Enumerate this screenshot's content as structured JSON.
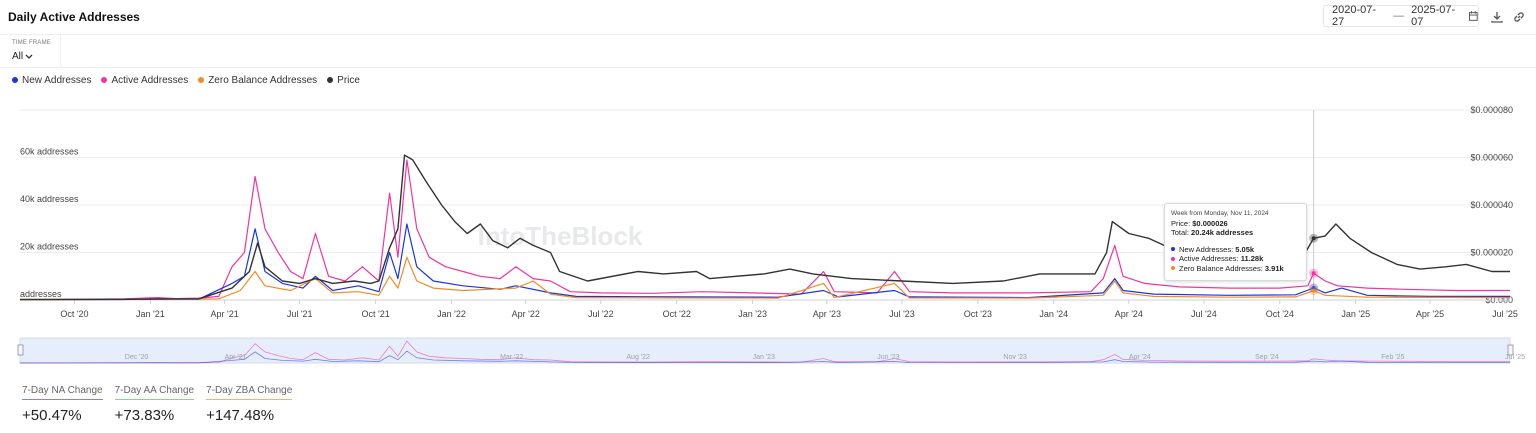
{
  "header": {
    "title": "Daily Active Addresses",
    "date_start": "2020-07-27",
    "date_sep": "—",
    "date_end": "2025-07-07",
    "icons": [
      "calendar-icon",
      "download-icon",
      "link-icon"
    ]
  },
  "timeframe": {
    "label": "TIME FRAME",
    "value": "All"
  },
  "legend": [
    {
      "label": "New Addresses",
      "color": "#1a35e0"
    },
    {
      "label": "Active Addresses",
      "color": "#f0359f"
    },
    {
      "label": "Zero Balance Addresses",
      "color": "#f28c28"
    },
    {
      "label": "Price",
      "color": "#333333"
    }
  ],
  "watermark": "IntoTheBlock",
  "tooltip": {
    "week": "Week from Monday, Nov 11, 2024",
    "price_label": "Price:",
    "price_value": "$0.000026",
    "total_label": "Total:",
    "total_value": "20.24k addresses",
    "na_label": "New Addresses:",
    "na_value": "5.05k",
    "aa_label": "Active Addresses:",
    "aa_value": "11.28k",
    "zba_label": "Zero Balance Addresses:",
    "zba_value": "3.91k"
  },
  "navigator_labels": [
    "Dec '20",
    "Apr '21",
    "Mar '22",
    "Aug '22",
    "Jan '23",
    "Jun '23",
    "Nov '23",
    "Apr '24",
    "Sep '24",
    "Feb '25",
    "Jul '25"
  ],
  "stats": [
    {
      "label": "7-Day NA Change",
      "value": "+50.47%",
      "color": "#7d86e8"
    },
    {
      "label": "7-Day AA Change",
      "value": "+73.83%",
      "color": "#8fd18f"
    },
    {
      "label": "7-Day ZBA Change",
      "value": "+147.48%",
      "color": "#f2b37a"
    }
  ],
  "chart_data": {
    "type": "line",
    "title": "Daily Active Addresses",
    "x_ticks": [
      "Oct '20",
      "Jan '21",
      "Apr '21",
      "Jul '21",
      "Oct '21",
      "Jan '22",
      "Apr '22",
      "Jul '22",
      "Oct '22",
      "Jan '23",
      "Apr '23",
      "Jul '23",
      "Oct '23",
      "Jan '24",
      "Apr '24",
      "Jul '24",
      "Oct '24",
      "Jan '25",
      "Apr '25",
      "Jul '25"
    ],
    "x_range": [
      "2020-07-27",
      "2025-07-07"
    ],
    "y_left": {
      "ticks": [
        0,
        20000,
        40000,
        60000
      ],
      "tick_labels": [
        "addresses",
        "20k addresses",
        "40k addresses",
        "60k addresses"
      ],
      "ylim": [
        0,
        80000
      ]
    },
    "y_right": {
      "ticks": [
        0,
        2e-05,
        4e-05,
        6e-05,
        8e-05
      ],
      "tick_labels": [
        "$0.000",
        "$0.000020",
        "$0.000040",
        "$0.000060",
        "$0.000080"
      ],
      "ylim": [
        0,
        8e-05
      ]
    },
    "grid": true,
    "series": [
      {
        "name": "Active Addresses",
        "axis": "left",
        "color": "#f0359f",
        "points": [
          [
            "2020-07-27",
            100
          ],
          [
            "2020-10-01",
            300
          ],
          [
            "2020-12-01",
            500
          ],
          [
            "2021-01-10",
            1000
          ],
          [
            "2021-02-01",
            600
          ],
          [
            "2021-03-01",
            800
          ],
          [
            "2021-03-25",
            1500
          ],
          [
            "2021-04-10",
            14000
          ],
          [
            "2021-04-25",
            20000
          ],
          [
            "2021-05-08",
            52000
          ],
          [
            "2021-05-20",
            30000
          ],
          [
            "2021-06-05",
            20000
          ],
          [
            "2021-06-20",
            12000
          ],
          [
            "2021-07-05",
            9000
          ],
          [
            "2021-07-20",
            28000
          ],
          [
            "2021-08-05",
            10000
          ],
          [
            "2021-08-25",
            8000
          ],
          [
            "2021-09-15",
            14000
          ],
          [
            "2021-10-05",
            8000
          ],
          [
            "2021-10-18",
            45000
          ],
          [
            "2021-10-28",
            18000
          ],
          [
            "2021-11-08",
            59000
          ],
          [
            "2021-11-20",
            30000
          ],
          [
            "2021-12-05",
            18000
          ],
          [
            "2021-12-25",
            14000
          ],
          [
            "2022-01-15",
            12000
          ],
          [
            "2022-02-05",
            10000
          ],
          [
            "2022-03-01",
            9000
          ],
          [
            "2022-03-20",
            14000
          ],
          [
            "2022-04-10",
            9000
          ],
          [
            "2022-05-01",
            8000
          ],
          [
            "2022-05-25",
            3500
          ],
          [
            "2022-07-01",
            3000
          ],
          [
            "2022-09-01",
            2800
          ],
          [
            "2022-11-01",
            3500
          ],
          [
            "2023-01-01",
            3000
          ],
          [
            "2023-03-01",
            2500
          ],
          [
            "2023-03-28",
            12000
          ],
          [
            "2023-04-10",
            3500
          ],
          [
            "2023-06-01",
            3000
          ],
          [
            "2023-06-22",
            12000
          ],
          [
            "2023-07-10",
            3500
          ],
          [
            "2023-09-01",
            3000
          ],
          [
            "2023-12-01",
            3000
          ],
          [
            "2024-02-15",
            3500
          ],
          [
            "2024-03-01",
            9000
          ],
          [
            "2024-03-15",
            23000
          ],
          [
            "2024-03-25",
            10000
          ],
          [
            "2024-04-20",
            7000
          ],
          [
            "2024-06-01",
            5500
          ],
          [
            "2024-08-01",
            5000
          ],
          [
            "2024-10-01",
            5000
          ],
          [
            "2024-11-04",
            6000
          ],
          [
            "2024-11-11",
            11280
          ],
          [
            "2024-11-25",
            8000
          ],
          [
            "2024-12-10",
            6000
          ],
          [
            "2025-01-15",
            5000
          ],
          [
            "2025-03-01",
            4500
          ],
          [
            "2025-05-01",
            4000
          ],
          [
            "2025-06-15",
            4000
          ],
          [
            "2025-07-07",
            4000
          ]
        ]
      },
      {
        "name": "New Addresses",
        "axis": "left",
        "color": "#1a35e0",
        "points": [
          [
            "2020-07-27",
            100
          ],
          [
            "2020-12-01",
            200
          ],
          [
            "2021-01-10",
            500
          ],
          [
            "2021-03-01",
            400
          ],
          [
            "2021-04-10",
            7000
          ],
          [
            "2021-04-25",
            10000
          ],
          [
            "2021-05-08",
            30000
          ],
          [
            "2021-05-20",
            12000
          ],
          [
            "2021-06-10",
            7000
          ],
          [
            "2021-07-05",
            5000
          ],
          [
            "2021-07-20",
            10000
          ],
          [
            "2021-08-10",
            4000
          ],
          [
            "2021-09-10",
            6000
          ],
          [
            "2021-10-05",
            3500
          ],
          [
            "2021-10-18",
            20000
          ],
          [
            "2021-10-28",
            9000
          ],
          [
            "2021-11-08",
            32000
          ],
          [
            "2021-11-20",
            14000
          ],
          [
            "2021-12-10",
            8000
          ],
          [
            "2022-01-15",
            6000
          ],
          [
            "2022-03-01",
            4500
          ],
          [
            "2022-03-20",
            6000
          ],
          [
            "2022-05-01",
            3000
          ],
          [
            "2022-06-01",
            1500
          ],
          [
            "2022-10-01",
            1300
          ],
          [
            "2023-02-01",
            1200
          ],
          [
            "2023-03-28",
            4000
          ],
          [
            "2023-04-15",
            1300
          ],
          [
            "2023-06-22",
            4000
          ],
          [
            "2023-07-10",
            1300
          ],
          [
            "2023-12-01",
            1000
          ],
          [
            "2024-03-01",
            3000
          ],
          [
            "2024-03-15",
            9000
          ],
          [
            "2024-03-25",
            4000
          ],
          [
            "2024-05-01",
            2500
          ],
          [
            "2024-08-01",
            2000
          ],
          [
            "2024-10-20",
            2200
          ],
          [
            "2024-11-11",
            5050
          ],
          [
            "2024-11-25",
            3000
          ],
          [
            "2024-12-15",
            5000
          ],
          [
            "2025-01-15",
            2000
          ],
          [
            "2025-04-01",
            1500
          ],
          [
            "2025-07-07",
            1500
          ]
        ]
      },
      {
        "name": "Zero Balance Addresses",
        "axis": "left",
        "color": "#f28c28",
        "points": [
          [
            "2020-07-27",
            50
          ],
          [
            "2021-01-10",
            300
          ],
          [
            "2021-03-25",
            500
          ],
          [
            "2021-04-20",
            4000
          ],
          [
            "2021-05-08",
            12000
          ],
          [
            "2021-05-20",
            6000
          ],
          [
            "2021-06-20",
            4000
          ],
          [
            "2021-07-20",
            9000
          ],
          [
            "2021-08-10",
            3000
          ],
          [
            "2021-09-10",
            3500
          ],
          [
            "2021-10-05",
            2000
          ],
          [
            "2021-10-18",
            10000
          ],
          [
            "2021-10-28",
            5000
          ],
          [
            "2021-11-08",
            18000
          ],
          [
            "2021-11-20",
            8000
          ],
          [
            "2021-12-10",
            5000
          ],
          [
            "2022-01-15",
            4000
          ],
          [
            "2022-03-20",
            5000
          ],
          [
            "2022-04-10",
            8000
          ],
          [
            "2022-05-01",
            2500
          ],
          [
            "2022-06-01",
            1000
          ],
          [
            "2022-10-01",
            900
          ],
          [
            "2023-02-01",
            800
          ],
          [
            "2023-03-28",
            7000
          ],
          [
            "2023-04-10",
            1000
          ],
          [
            "2023-06-22",
            7000
          ],
          [
            "2023-07-10",
            900
          ],
          [
            "2023-12-01",
            800
          ],
          [
            "2024-03-01",
            2000
          ],
          [
            "2024-03-15",
            8000
          ],
          [
            "2024-03-25",
            3000
          ],
          [
            "2024-05-01",
            1500
          ],
          [
            "2024-08-01",
            1200
          ],
          [
            "2024-10-20",
            1300
          ],
          [
            "2024-11-11",
            3910
          ],
          [
            "2024-11-25",
            2000
          ],
          [
            "2025-01-15",
            1200
          ],
          [
            "2025-07-07",
            1000
          ]
        ]
      },
      {
        "name": "Price",
        "axis": "right",
        "color": "#333333",
        "points": [
          [
            "2020-07-27",
            2e-07
          ],
          [
            "2020-12-01",
            3e-07
          ],
          [
            "2021-03-01",
            5e-07
          ],
          [
            "2021-04-10",
            5e-06
          ],
          [
            "2021-05-01",
            1.2e-05
          ],
          [
            "2021-05-11",
            2.4e-05
          ],
          [
            "2021-05-20",
            1.4e-05
          ],
          [
            "2021-06-10",
            8e-06
          ],
          [
            "2021-07-01",
            7e-06
          ],
          [
            "2021-07-20",
            9e-06
          ],
          [
            "2021-08-10",
            7e-06
          ],
          [
            "2021-09-05",
            8e-06
          ],
          [
            "2021-09-25",
            7e-06
          ],
          [
            "2021-10-05",
            8e-06
          ],
          [
            "2021-10-18",
            2.2e-05
          ],
          [
            "2021-10-28",
            3e-05
          ],
          [
            "2021-11-05",
            6.1e-05
          ],
          [
            "2021-11-15",
            5.9e-05
          ],
          [
            "2021-12-01",
            5e-05
          ],
          [
            "2021-12-20",
            4e-05
          ],
          [
            "2022-01-05",
            3.3e-05
          ],
          [
            "2022-01-20",
            2.8e-05
          ],
          [
            "2022-02-05",
            3.2e-05
          ],
          [
            "2022-02-20",
            2.5e-05
          ],
          [
            "2022-03-10",
            2.2e-05
          ],
          [
            "2022-03-25",
            2.6e-05
          ],
          [
            "2022-04-10",
            2.3e-05
          ],
          [
            "2022-05-01",
            2e-05
          ],
          [
            "2022-05-12",
            1.2e-05
          ],
          [
            "2022-06-15",
            8e-06
          ],
          [
            "2022-08-15",
            1.2e-05
          ],
          [
            "2022-09-15",
            1.1e-05
          ],
          [
            "2022-10-25",
            1.2e-05
          ],
          [
            "2022-11-10",
            9e-06
          ],
          [
            "2023-01-15",
            1.1e-05
          ],
          [
            "2023-02-15",
            1.3e-05
          ],
          [
            "2023-03-15",
            1.1e-05
          ],
          [
            "2023-05-01",
            9e-06
          ],
          [
            "2023-07-01",
            8e-06
          ],
          [
            "2023-09-01",
            7e-06
          ],
          [
            "2023-11-01",
            8e-06
          ],
          [
            "2023-12-15",
            1.1e-05
          ],
          [
            "2024-02-20",
            1.1e-05
          ],
          [
            "2024-03-05",
            2e-05
          ],
          [
            "2024-03-12",
            3.3e-05
          ],
          [
            "2024-04-01",
            2.8e-05
          ],
          [
            "2024-04-25",
            2.6e-05
          ],
          [
            "2024-05-20",
            2.2e-05
          ],
          [
            "2024-06-15",
            2.5e-05
          ],
          [
            "2024-07-05",
            2e-05
          ],
          [
            "2024-08-05",
            1.9e-05
          ],
          [
            "2024-09-05",
            1.8e-05
          ],
          [
            "2024-10-05",
            1.7e-05
          ],
          [
            "2024-11-01",
            2e-05
          ],
          [
            "2024-11-11",
            2.6e-05
          ],
          [
            "2024-11-25",
            2.7e-05
          ],
          [
            "2024-12-08",
            3.2e-05
          ],
          [
            "2024-12-25",
            2.6e-05
          ],
          [
            "2025-01-20",
            2e-05
          ],
          [
            "2025-02-20",
            1.5e-05
          ],
          [
            "2025-03-20",
            1.3e-05
          ],
          [
            "2025-04-20",
            1.4e-05
          ],
          [
            "2025-05-15",
            1.5e-05
          ],
          [
            "2025-06-15",
            1.2e-05
          ],
          [
            "2025-07-07",
            1.2e-05
          ]
        ]
      }
    ]
  }
}
